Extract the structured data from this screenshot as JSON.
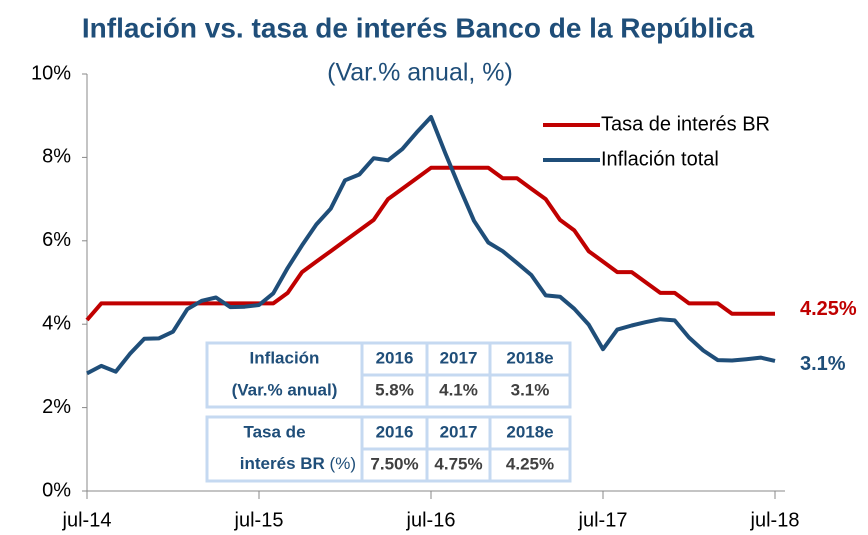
{
  "chart_data": {
    "type": "line",
    "title": "Inflación vs. tasa de interés Banco de la República",
    "subtitle": "(Var.% anual, %)",
    "categories": [
      "jul-14",
      null,
      null,
      null,
      null,
      null,
      null,
      null,
      null,
      null,
      null,
      null,
      "jul-15",
      null,
      null,
      null,
      null,
      null,
      null,
      null,
      null,
      null,
      null,
      null,
      "jul-16",
      null,
      null,
      null,
      null,
      null,
      null,
      null,
      null,
      null,
      null,
      null,
      "jul-17",
      null,
      null,
      null,
      null,
      null,
      null,
      null,
      null,
      null,
      null,
      null,
      "jul-18"
    ],
    "series": [
      {
        "name": "Tasa de interés BR",
        "color": "#c00000",
        "end_label": "4.25%",
        "values": [
          4.1,
          4.5,
          4.5,
          4.5,
          4.5,
          4.5,
          4.5,
          4.5,
          4.5,
          4.5,
          4.5,
          4.5,
          4.5,
          4.5,
          4.75,
          5.25,
          5.5,
          5.75,
          6.0,
          6.25,
          6.5,
          7.0,
          7.25,
          7.5,
          7.75,
          7.75,
          7.75,
          7.75,
          7.75,
          7.5,
          7.5,
          7.25,
          7.0,
          6.5,
          6.25,
          5.75,
          5.5,
          5.25,
          5.25,
          5.0,
          4.75,
          4.75,
          4.5,
          4.5,
          4.5,
          4.25,
          4.25,
          4.25,
          4.25
        ]
      },
      {
        "name": "Inflación total",
        "color": "#1f4e79",
        "end_label": "3.1%",
        "values": [
          2.82,
          3.0,
          2.86,
          3.29,
          3.65,
          3.66,
          3.82,
          4.36,
          4.56,
          4.64,
          4.41,
          4.42,
          4.46,
          4.74,
          5.35,
          5.89,
          6.39,
          6.77,
          7.45,
          7.59,
          7.98,
          7.93,
          8.2,
          8.6,
          8.97,
          8.1,
          7.27,
          6.48,
          5.96,
          5.75,
          5.47,
          5.18,
          4.69,
          4.66,
          4.37,
          3.99,
          3.4,
          3.87,
          3.97,
          4.05,
          4.12,
          4.09,
          3.68,
          3.37,
          3.14,
          3.13,
          3.16,
          3.2,
          3.12
        ]
      }
    ],
    "ylim": [
      0,
      10
    ],
    "yticks": [
      {
        "value": 0,
        "label": "0%"
      },
      {
        "value": 2,
        "label": "2%"
      },
      {
        "value": 4,
        "label": "4%"
      },
      {
        "value": 6,
        "label": "6%"
      },
      {
        "value": 8,
        "label": "8%"
      },
      {
        "value": 10,
        "label": "10%"
      }
    ],
    "legend": "upper right",
    "tables": [
      {
        "label": [
          "Inflación",
          "(Var.% anual)"
        ],
        "unit": null,
        "columns": [
          "2016",
          "2017",
          "2018e"
        ],
        "values": [
          "5.8%",
          "4.1%",
          "3.1%"
        ]
      },
      {
        "label": [
          "Tasa de",
          "interés BR"
        ],
        "unit": "(%)",
        "columns": [
          "2016",
          "2017",
          "2018e"
        ],
        "values": [
          "7.50%",
          "4.75%",
          "4.25%"
        ]
      }
    ]
  }
}
